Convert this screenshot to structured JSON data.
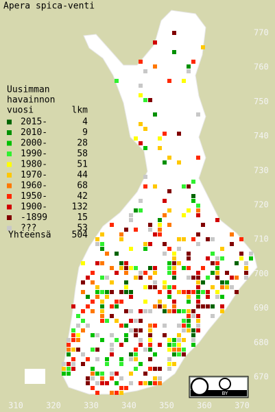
{
  "title": "Apera spica-venti",
  "legend": {
    "heading": [
      "Uusimman",
      "havainnon"
    ],
    "col_year": "vuosi",
    "col_count": "lkm",
    "rows": [
      {
        "label": "2015-",
        "count": 4,
        "color": "#006400"
      },
      {
        "label": "2010-",
        "count": 9,
        "color": "#009000"
      },
      {
        "label": "2000-",
        "count": 28,
        "color": "#00c000"
      },
      {
        "label": "1990-",
        "count": 58,
        "color": "#30f030"
      },
      {
        "label": "1980-",
        "count": 51,
        "color": "#ffff00"
      },
      {
        "label": "1970-",
        "count": 44,
        "color": "#ffc800"
      },
      {
        "label": "1960-",
        "count": 68,
        "color": "#ff7800"
      },
      {
        "label": "1950-",
        "count": 42,
        "color": "#ff2800"
      },
      {
        "label": "1900-",
        "count": 132,
        "color": "#d00000"
      },
      {
        "label": "-1899",
        "count": 15,
        "color": "#800000"
      },
      {
        "label": "???",
        "count": 53,
        "color": "#c8c8c8"
      }
    ],
    "total_label": "Yhteensä",
    "total": 504
  },
  "axes": {
    "y_labels": [
      "770",
      "760",
      "750",
      "740",
      "730",
      "720",
      "710",
      "700",
      "690",
      "680",
      "670"
    ],
    "x_labels": [
      "310",
      "320",
      "330",
      "340",
      "350",
      "360",
      "370"
    ]
  },
  "license": "BY"
}
